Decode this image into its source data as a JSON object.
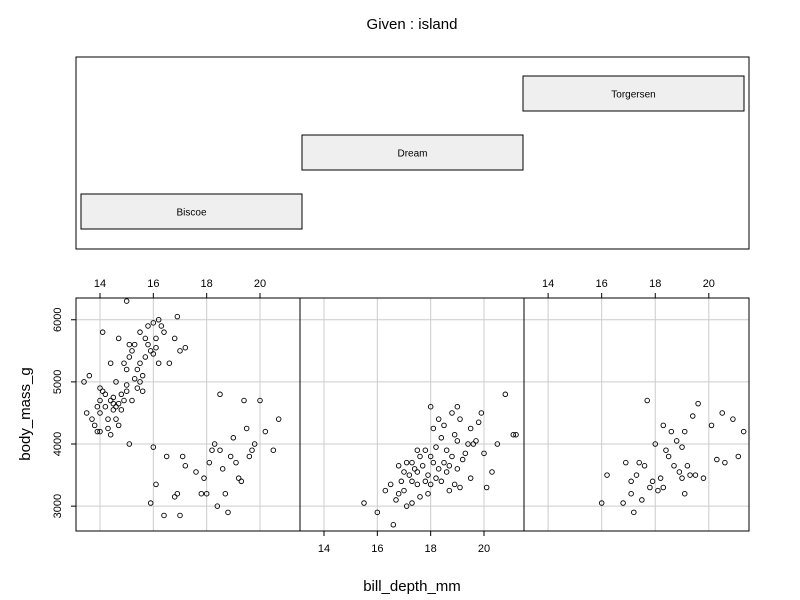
{
  "chart_data": {
    "type": "scatter",
    "given_title": "Given : island",
    "xlabel": "bill_depth_mm",
    "ylabel": "body_mass_g",
    "xlim": [
      13.1,
      21.5
    ],
    "ylim": [
      2600,
      6350
    ],
    "x_ticks": [
      "14",
      "16",
      "18",
      "20"
    ],
    "y_ticks": [
      "3000",
      "4000",
      "5000",
      "6000"
    ],
    "grid": true,
    "given_levels": [
      {
        "label": "Biscoe",
        "range": [
          0,
          1
        ]
      },
      {
        "label": "Dream",
        "range": [
          1,
          2
        ]
      },
      {
        "label": "Torgersen",
        "range": [
          2,
          3
        ]
      }
    ],
    "panels": [
      {
        "name": "Biscoe",
        "points": [
          [
            13.4,
            5000
          ],
          [
            13.6,
            5100
          ],
          [
            13.5,
            4500
          ],
          [
            13.7,
            4400
          ],
          [
            13.8,
            4300
          ],
          [
            13.9,
            4600
          ],
          [
            13.9,
            4200
          ],
          [
            14.0,
            4500
          ],
          [
            14.0,
            4700
          ],
          [
            14.0,
            4900
          ],
          [
            14.1,
            4850
          ],
          [
            14.2,
            4600
          ],
          [
            14.2,
            4800
          ],
          [
            14.3,
            4400
          ],
          [
            14.3,
            4250
          ],
          [
            14.4,
            5300
          ],
          [
            14.4,
            4700
          ],
          [
            14.5,
            4550
          ],
          [
            14.5,
            4650
          ],
          [
            14.5,
            4750
          ],
          [
            14.6,
            5000
          ],
          [
            14.6,
            4600
          ],
          [
            14.7,
            5700
          ],
          [
            14.7,
            4300
          ],
          [
            14.7,
            4650
          ],
          [
            14.8,
            4800
          ],
          [
            14.8,
            4550
          ],
          [
            14.9,
            5300
          ],
          [
            14.9,
            4700
          ],
          [
            15.0,
            5200
          ],
          [
            15.0,
            4950
          ],
          [
            15.0,
            4850
          ],
          [
            15.1,
            5600
          ],
          [
            15.1,
            5400
          ],
          [
            15.2,
            5500
          ],
          [
            15.2,
            4700
          ],
          [
            15.3,
            5600
          ],
          [
            15.3,
            5050
          ],
          [
            15.4,
            5200
          ],
          [
            15.4,
            4900
          ],
          [
            15.5,
            5800
          ],
          [
            15.5,
            5300
          ],
          [
            15.5,
            5000
          ],
          [
            15.6,
            5100
          ],
          [
            15.6,
            4850
          ],
          [
            15.7,
            5700
          ],
          [
            15.7,
            5400
          ],
          [
            15.8,
            5900
          ],
          [
            15.8,
            5600
          ],
          [
            15.9,
            5500
          ],
          [
            16.0,
            5950
          ],
          [
            16.0,
            5450
          ],
          [
            16.1,
            5700
          ],
          [
            16.1,
            5550
          ],
          [
            16.2,
            6000
          ],
          [
            16.2,
            5300
          ],
          [
            16.3,
            5900
          ],
          [
            16.4,
            5800
          ],
          [
            16.6,
            5300
          ],
          [
            16.8,
            5700
          ],
          [
            16.9,
            6050
          ],
          [
            17.0,
            5500
          ],
          [
            17.2,
            5550
          ],
          [
            14.4,
            4150
          ],
          [
            14.6,
            4400
          ],
          [
            15.1,
            4000
          ],
          [
            15.0,
            6300
          ],
          [
            14.0,
            4200
          ],
          [
            14.1,
            5800
          ],
          [
            16.0,
            3950
          ],
          [
            15.9,
            3050
          ],
          [
            16.1,
            3350
          ],
          [
            16.4,
            2850
          ],
          [
            16.5,
            3800
          ],
          [
            16.8,
            3150
          ],
          [
            16.9,
            3200
          ],
          [
            17.0,
            2850
          ],
          [
            17.1,
            3800
          ],
          [
            17.2,
            3650
          ],
          [
            17.6,
            3550
          ],
          [
            17.8,
            3200
          ],
          [
            17.9,
            3450
          ],
          [
            18.0,
            3200
          ],
          [
            18.1,
            3700
          ],
          [
            18.2,
            3900
          ],
          [
            18.3,
            4000
          ],
          [
            18.5,
            3900
          ],
          [
            18.6,
            3600
          ],
          [
            18.7,
            3200
          ],
          [
            18.8,
            2900
          ],
          [
            18.9,
            3800
          ],
          [
            19.0,
            4100
          ],
          [
            19.1,
            3700
          ],
          [
            19.2,
            3450
          ],
          [
            19.3,
            3400
          ],
          [
            19.5,
            4250
          ],
          [
            19.6,
            3800
          ],
          [
            19.8,
            4000
          ],
          [
            20.0,
            4700
          ],
          [
            20.2,
            4200
          ],
          [
            20.5,
            3900
          ],
          [
            20.7,
            4400
          ],
          [
            18.4,
            3000
          ],
          [
            19.4,
            4700
          ],
          [
            18.5,
            4800
          ],
          [
            19.7,
            3900
          ]
        ]
      },
      {
        "name": "Dream",
        "points": [
          [
            15.5,
            3050
          ],
          [
            16.0,
            2900
          ],
          [
            16.3,
            3250
          ],
          [
            16.5,
            3350
          ],
          [
            16.6,
            2700
          ],
          [
            16.7,
            3100
          ],
          [
            16.8,
            3200
          ],
          [
            16.9,
            3400
          ],
          [
            17.0,
            3550
          ],
          [
            17.0,
            3250
          ],
          [
            17.1,
            3700
          ],
          [
            17.1,
            3000
          ],
          [
            17.2,
            3500
          ],
          [
            17.3,
            3400
          ],
          [
            17.3,
            3700
          ],
          [
            17.4,
            3600
          ],
          [
            17.5,
            3550
          ],
          [
            17.5,
            3350
          ],
          [
            17.6,
            3800
          ],
          [
            17.6,
            3150
          ],
          [
            17.7,
            3650
          ],
          [
            17.8,
            3400
          ],
          [
            17.8,
            3900
          ],
          [
            17.9,
            3500
          ],
          [
            17.9,
            3200
          ],
          [
            18.0,
            3350
          ],
          [
            18.0,
            3800
          ],
          [
            18.1,
            3700
          ],
          [
            18.1,
            4250
          ],
          [
            18.2,
            3450
          ],
          [
            18.2,
            3950
          ],
          [
            18.3,
            4400
          ],
          [
            18.3,
            3600
          ],
          [
            18.4,
            3400
          ],
          [
            18.4,
            4100
          ],
          [
            18.5,
            3700
          ],
          [
            18.5,
            4300
          ],
          [
            18.6,
            3550
          ],
          [
            18.6,
            3900
          ],
          [
            18.7,
            3250
          ],
          [
            18.7,
            3650
          ],
          [
            18.8,
            4500
          ],
          [
            18.8,
            3800
          ],
          [
            18.9,
            3350
          ],
          [
            18.9,
            4150
          ],
          [
            19.0,
            4050
          ],
          [
            19.0,
            3600
          ],
          [
            19.1,
            3300
          ],
          [
            19.1,
            4400
          ],
          [
            19.2,
            3750
          ],
          [
            19.3,
            3850
          ],
          [
            19.4,
            4000
          ],
          [
            19.5,
            4250
          ],
          [
            19.5,
            3450
          ],
          [
            19.6,
            4000
          ],
          [
            19.7,
            4050
          ],
          [
            19.8,
            4350
          ],
          [
            19.9,
            4500
          ],
          [
            20.0,
            3850
          ],
          [
            20.1,
            3300
          ],
          [
            20.3,
            3550
          ],
          [
            20.5,
            4000
          ],
          [
            20.8,
            4800
          ],
          [
            21.1,
            4150
          ],
          [
            21.2,
            4150
          ],
          [
            17.3,
            3050
          ],
          [
            18.0,
            4600
          ],
          [
            19.0,
            4600
          ],
          [
            16.8,
            3650
          ],
          [
            17.5,
            3900
          ]
        ]
      },
      {
        "name": "Torgersen",
        "points": [
          [
            16.0,
            3050
          ],
          [
            16.2,
            3500
          ],
          [
            16.8,
            3050
          ],
          [
            16.9,
            3700
          ],
          [
            17.1,
            3400
          ],
          [
            17.1,
            3200
          ],
          [
            17.2,
            2900
          ],
          [
            17.3,
            3500
          ],
          [
            17.4,
            3700
          ],
          [
            17.5,
            3100
          ],
          [
            17.6,
            3650
          ],
          [
            17.7,
            4700
          ],
          [
            17.8,
            3300
          ],
          [
            17.9,
            3400
          ],
          [
            18.0,
            4000
          ],
          [
            18.1,
            3250
          ],
          [
            18.2,
            3450
          ],
          [
            18.3,
            4300
          ],
          [
            18.4,
            3900
          ],
          [
            18.5,
            3800
          ],
          [
            18.6,
            4200
          ],
          [
            18.7,
            3650
          ],
          [
            18.8,
            4050
          ],
          [
            18.9,
            3550
          ],
          [
            19.0,
            3450
          ],
          [
            19.0,
            3950
          ],
          [
            19.1,
            4200
          ],
          [
            19.2,
            3650
          ],
          [
            19.3,
            3500
          ],
          [
            19.4,
            4450
          ],
          [
            19.5,
            3500
          ],
          [
            19.6,
            4650
          ],
          [
            19.8,
            3450
          ],
          [
            20.1,
            4300
          ],
          [
            20.3,
            3750
          ],
          [
            20.5,
            4500
          ],
          [
            20.6,
            3700
          ],
          [
            20.9,
            4400
          ],
          [
            21.1,
            3800
          ],
          [
            21.3,
            4200
          ],
          [
            18.3,
            3300
          ],
          [
            19.1,
            3200
          ]
        ]
      }
    ]
  }
}
